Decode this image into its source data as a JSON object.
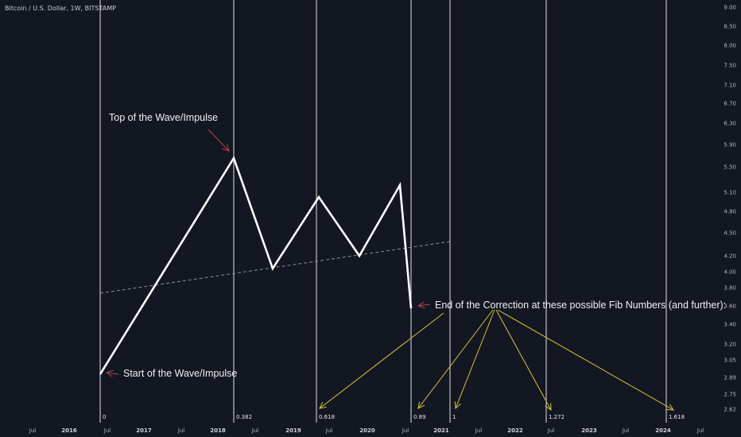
{
  "header": {
    "symbol_title": "Bitcoin / U.S. Dollar, 1W, BITSTAMP"
  },
  "colors": {
    "background": "#131722",
    "wave_line": "#ffffff",
    "fib_line": "#e0e0e0",
    "trend_line": "#8a8f9a",
    "yellow_arrow": "#d6c23a",
    "red_arrow": "#b04a4a"
  },
  "price_axis": {
    "ticks": [
      "9.00",
      "8.50",
      "8.00",
      "7.50",
      "7.10",
      "6.70",
      "6.30",
      "5.90",
      "5.50",
      "5.10",
      "4.80",
      "4.50",
      "4.20",
      "4.00",
      "3.80",
      "3.60",
      "3.40",
      "3.20",
      "3.05",
      "2.89",
      "2.75",
      "2.62"
    ]
  },
  "time_axis": {
    "labels": [
      {
        "text": "Jul",
        "bold": false
      },
      {
        "text": "2016",
        "bold": true
      },
      {
        "text": "Jul",
        "bold": false
      },
      {
        "text": "2017",
        "bold": true
      },
      {
        "text": "Jul",
        "bold": false
      },
      {
        "text": "2018",
        "bold": true
      },
      {
        "text": "Jul",
        "bold": false
      },
      {
        "text": "2019",
        "bold": true
      },
      {
        "text": "Jul",
        "bold": false
      },
      {
        "text": "2020",
        "bold": true
      },
      {
        "text": "Jul",
        "bold": false
      },
      {
        "text": "2021",
        "bold": true
      },
      {
        "text": "Jul",
        "bold": false
      },
      {
        "text": "2022",
        "bold": true
      },
      {
        "text": "Jul",
        "bold": false
      },
      {
        "text": "2023",
        "bold": true
      },
      {
        "text": "Jul",
        "bold": false
      },
      {
        "text": "2024",
        "bold": true
      },
      {
        "text": "Jul",
        "bold": false
      }
    ]
  },
  "fib_levels": [
    "0",
    "0.382",
    "0.618",
    "0.89",
    "1",
    "1.272",
    "1.618"
  ],
  "annotations": {
    "top": "Top of the Wave/Impulse",
    "start": "Start of the Wave/Impulse",
    "end": "End of the Correction at these possible Fib Numbers (and further):"
  },
  "chart_data": {
    "type": "line",
    "title": "Bitcoin / U.S. Dollar, 1W, BITSTAMP",
    "y_scale": "log",
    "ylim": [
      2.62,
      9.0
    ],
    "wave_path": [
      {
        "label": "Start",
        "x": "2016 Jul",
        "y": 2.93
      },
      {
        "label": "Top",
        "x": "2018 Feb",
        "y": 5.65
      },
      {
        "x": "2018 Oct",
        "y": 4.05
      },
      {
        "x": "2019 Jun",
        "y": 5.0
      },
      {
        "x": "2019 Dec",
        "y": 4.2
      },
      {
        "x": "2020 Jun",
        "y": 5.2
      },
      {
        "label": "End",
        "x": "2020 Aug",
        "y": 3.6
      }
    ],
    "trend_line": [
      {
        "x": "2016 Jul",
        "y": 3.72
      },
      {
        "x": "2021 Jan",
        "y": 4.38
      }
    ],
    "fib_time_zones": [
      {
        "label": "0",
        "x": "2016 Jul"
      },
      {
        "label": "0.382",
        "x": "2018 Feb"
      },
      {
        "label": "0.618",
        "x": "2019 Jun"
      },
      {
        "label": "0.89",
        "x": "2020 Aug"
      },
      {
        "label": "1",
        "x": "2021 Jan"
      },
      {
        "label": "1.272",
        "x": "2022 Jul"
      },
      {
        "label": "1.618",
        "x": "2024 Jan"
      }
    ]
  }
}
